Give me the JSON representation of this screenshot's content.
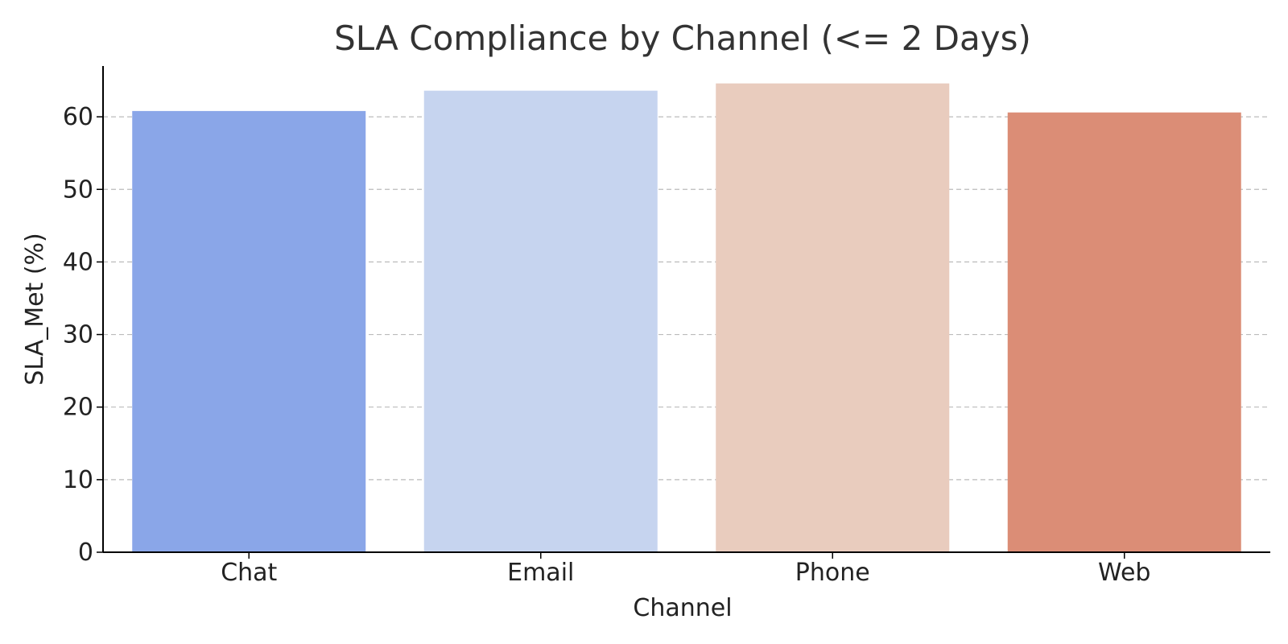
{
  "chart_data": {
    "type": "bar",
    "title": "SLA Compliance by Channel (<= 2 Days)",
    "xlabel": "Channel",
    "ylabel": "SLA_Met (%)",
    "categories": [
      "Chat",
      "Email",
      "Phone",
      "Web"
    ],
    "values": [
      60.8,
      63.6,
      64.6,
      60.6
    ],
    "colors": [
      "#8aa6e8",
      "#c6d4ef",
      "#e9ccbe",
      "#db8d76"
    ],
    "ylim": [
      0,
      67
    ],
    "yticks": [
      0,
      10,
      20,
      30,
      40,
      50,
      60
    ],
    "grid": "y-dashed",
    "legend": "none"
  }
}
